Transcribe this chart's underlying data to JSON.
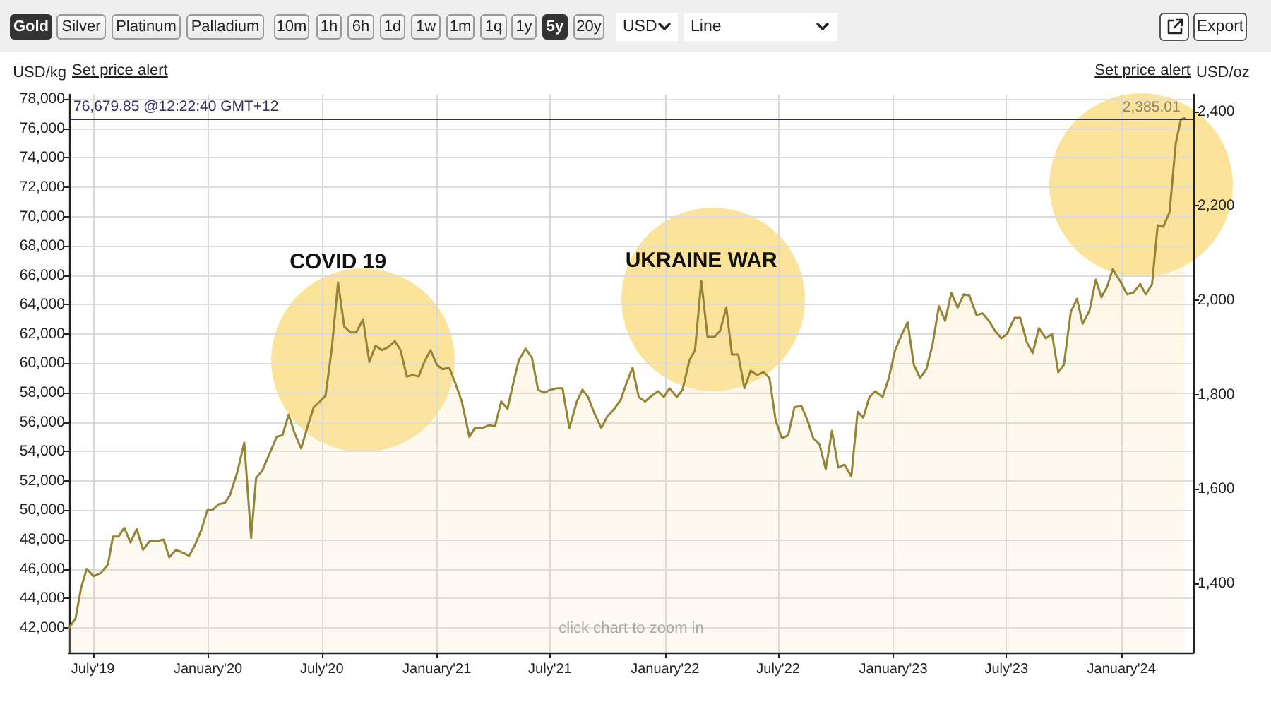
{
  "chart_data": {
    "type": "area",
    "ylabel": "USD/kg",
    "y2label": "USD/oz",
    "color": "#948435",
    "marker": "none",
    "grid": true,
    "xlim": [
      "2019-05-24",
      "2024-04-25"
    ],
    "xticks": [
      {
        "value": "2019-07-01",
        "label": "July'19"
      },
      {
        "value": "2020-01-01",
        "label": "January'20"
      },
      {
        "value": "2020-07-01",
        "label": "July'20"
      },
      {
        "value": "2021-01-01",
        "label": "January'21"
      },
      {
        "value": "2021-07-01",
        "label": "July'21"
      },
      {
        "value": "2022-01-01",
        "label": "January'22"
      },
      {
        "value": "2022-07-01",
        "label": "July'22"
      },
      {
        "value": "2023-01-01",
        "label": "January'23"
      },
      {
        "value": "2023-07-01",
        "label": "July'23"
      },
      {
        "value": "2024-01-01",
        "label": "January'24"
      }
    ],
    "ylim": [
      40300,
      78300
    ],
    "yticks": [
      {
        "value": 42000,
        "label": "42,000"
      },
      {
        "value": 44000,
        "label": "44,000"
      },
      {
        "value": 46000,
        "label": "46,000"
      },
      {
        "value": 48000,
        "label": "48,000"
      },
      {
        "value": 50000,
        "label": "50,000"
      },
      {
        "value": 52000,
        "label": "52,000"
      },
      {
        "value": 54000,
        "label": "54,000"
      },
      {
        "value": 56000,
        "label": "56,000"
      },
      {
        "value": 58000,
        "label": "58,000"
      },
      {
        "value": 60000,
        "label": "60,000"
      },
      {
        "value": 62000,
        "label": "62,000"
      },
      {
        "value": 64000,
        "label": "64,000"
      },
      {
        "value": 66000,
        "label": "66,000"
      },
      {
        "value": 68000,
        "label": "68,000"
      },
      {
        "value": 70000,
        "label": "70,000"
      },
      {
        "value": 72000,
        "label": "72,000"
      },
      {
        "value": 74000,
        "label": "74,000"
      },
      {
        "value": 76000,
        "label": "76,000"
      },
      {
        "value": 78000,
        "label": "78,000"
      }
    ],
    "y2lim": [
      1253.5,
      2435.4
    ],
    "y2ticks": [
      {
        "value": 1400,
        "label": "1,400"
      },
      {
        "value": 1600,
        "label": "1,600"
      },
      {
        "value": 1800,
        "label": "1,800"
      },
      {
        "value": 2000,
        "label": "2,000"
      },
      {
        "value": 2200,
        "label": "2,200"
      },
      {
        "value": 2400,
        "label": "2,400"
      }
    ],
    "ref_lines": [
      {
        "axis": "y",
        "value": 76679.85,
        "label": "76,679.85 @12:22:40 GMT+12",
        "color": "#2f3163"
      }
    ],
    "annotations": [
      {
        "text": "COVID 19",
        "x": "2020-07-27",
        "y": 65500
      },
      {
        "text": "UKRAINE WAR",
        "x": "2022-02-28",
        "y": 65600
      },
      {
        "text": "2,385.01",
        "x": "2024-04-11",
        "y": 76700
      },
      "click chart to zoom in",
      "Set price alert",
      "Set price alert",
      "Gold",
      "Silver",
      "Platinum",
      "Palladium",
      "10m",
      "1h",
      "6h",
      "1d",
      "1w",
      "1m",
      "1q",
      "1y",
      "5y",
      "20y",
      "USD",
      "Line",
      "Export"
    ],
    "x": [
      "2019-05-24",
      "2019-06-03",
      "2019-06-12",
      "2019-06-21",
      "2019-07-02",
      "2019-07-13",
      "2019-07-25",
      "2019-08-02",
      "2019-08-11",
      "2019-08-20",
      "2019-08-30",
      "2019-09-09",
      "2019-09-19",
      "2019-09-30",
      "2019-10-12",
      "2019-10-22",
      "2019-10-31",
      "2019-11-11",
      "2019-11-22",
      "2019-12-02",
      "2019-12-11",
      "2019-12-21",
      "2019-12-31",
      "2020-01-08",
      "2020-01-18",
      "2020-01-28",
      "2020-02-05",
      "2020-02-17",
      "2020-02-28",
      "2020-03-10",
      "2020-03-18",
      "2020-03-28",
      "2020-04-10",
      "2020-04-20",
      "2020-04-29",
      "2020-05-09",
      "2020-05-18",
      "2020-05-29",
      "2020-06-09",
      "2020-06-18",
      "2020-06-28",
      "2020-07-07",
      "2020-07-17",
      "2020-07-27",
      "2020-08-06",
      "2020-08-16",
      "2020-08-25",
      "2020-09-05",
      "2020-09-15",
      "2020-09-25",
      "2020-10-05",
      "2020-10-15",
      "2020-10-26",
      "2020-11-04",
      "2020-11-14",
      "2020-11-24",
      "2020-12-03",
      "2020-12-12",
      "2020-12-22",
      "2021-01-01",
      "2021-01-10",
      "2021-01-21",
      "2021-01-31",
      "2021-02-10",
      "2021-02-22",
      "2021-03-03",
      "2021-03-15",
      "2021-03-26",
      "2021-04-04",
      "2021-04-14",
      "2021-04-24",
      "2021-05-03",
      "2021-05-12",
      "2021-05-23",
      "2021-06-02",
      "2021-06-12",
      "2021-06-21",
      "2021-07-02",
      "2021-07-12",
      "2021-07-21",
      "2021-08-01",
      "2021-08-13",
      "2021-08-22",
      "2021-08-31",
      "2021-09-09",
      "2021-09-21",
      "2021-10-01",
      "2021-10-12",
      "2021-10-22",
      "2021-10-31",
      "2021-11-10",
      "2021-11-20",
      "2021-11-30",
      "2021-12-11",
      "2021-12-21",
      "2021-12-30",
      "2022-01-08",
      "2022-01-20",
      "2022-01-29",
      "2022-02-09",
      "2022-02-18",
      "2022-02-28",
      "2022-03-10",
      "2022-03-21",
      "2022-03-30",
      "2022-04-09",
      "2022-04-18",
      "2022-04-28",
      "2022-05-08",
      "2022-05-18",
      "2022-05-28",
      "2022-06-08",
      "2022-06-17",
      "2022-06-27",
      "2022-07-07",
      "2022-07-17",
      "2022-07-27",
      "2022-08-07",
      "2022-08-17",
      "2022-08-26",
      "2022-09-05",
      "2022-09-15",
      "2022-09-25",
      "2022-10-05",
      "2022-10-15",
      "2022-10-26",
      "2022-11-05",
      "2022-11-14",
      "2022-11-24",
      "2022-12-03",
      "2022-12-15",
      "2022-12-25",
      "2023-01-04",
      "2023-01-14",
      "2023-01-24",
      "2023-02-03",
      "2023-02-13",
      "2023-02-23",
      "2023-03-05",
      "2023-03-15",
      "2023-03-25",
      "2023-04-04",
      "2023-04-14",
      "2023-04-24",
      "2023-05-03",
      "2023-05-14",
      "2023-05-24",
      "2023-06-03",
      "2023-06-13",
      "2023-06-23",
      "2023-07-02",
      "2023-07-14",
      "2023-07-23",
      "2023-08-03",
      "2023-08-12",
      "2023-08-22",
      "2023-09-02",
      "2023-09-12",
      "2023-09-22",
      "2023-10-01",
      "2023-10-12",
      "2023-10-22",
      "2023-10-31",
      "2023-11-11",
      "2023-11-21",
      "2023-11-30",
      "2023-12-09",
      "2023-12-18",
      "2023-12-30",
      "2024-01-10",
      "2024-01-20",
      "2024-01-31",
      "2024-02-09",
      "2024-02-19",
      "2024-02-28",
      "2024-03-08",
      "2024-03-18",
      "2024-03-28",
      "2024-04-05",
      "2024-04-11"
    ],
    "values": [
      42000,
      42600,
      44700,
      46000,
      45500,
      45700,
      46300,
      48200,
      48200,
      48800,
      47800,
      48700,
      47300,
      47900,
      47900,
      48000,
      46800,
      47300,
      47100,
      46900,
      47600,
      48600,
      50000,
      50000,
      50400,
      50500,
      51000,
      52600,
      54600,
      48100,
      52200,
      52700,
      54000,
      55000,
      55100,
      56500,
      55300,
      54200,
      55800,
      57000,
      57400,
      57800,
      61000,
      65500,
      62500,
      62100,
      62100,
      63000,
      60100,
      61200,
      60900,
      61100,
      61500,
      60900,
      59100,
      59200,
      59100,
      60100,
      60900,
      59900,
      59600,
      59700,
      58600,
      57400,
      55000,
      55600,
      55600,
      55800,
      55700,
      57400,
      56900,
      58600,
      60200,
      61000,
      60400,
      58200,
      58000,
      58200,
      58300,
      58300,
      55600,
      57400,
      58200,
      57700,
      56700,
      55600,
      56400,
      56900,
      57500,
      58600,
      59700,
      57700,
      57400,
      57800,
      58100,
      57700,
      58300,
      57700,
      58200,
      60200,
      60900,
      65600,
      61800,
      61800,
      62200,
      63800,
      60600,
      60600,
      58300,
      59500,
      59200,
      59400,
      59000,
      56100,
      54900,
      55100,
      57000,
      57100,
      56100,
      54900,
      54500,
      52800,
      55400,
      52900,
      53100,
      52300,
      56700,
      56300,
      57700,
      58100,
      57700,
      59000,
      60900,
      61900,
      62800,
      59900,
      59000,
      59600,
      61300,
      63900,
      62900,
      64800,
      63800,
      64700,
      64600,
      63300,
      63400,
      62900,
      62200,
      61700,
      62000,
      63100,
      63100,
      61400,
      60700,
      62400,
      61700,
      62000,
      59400,
      59900,
      63500,
      64400,
      62700,
      63600,
      65700,
      64500,
      65200,
      66400,
      65600,
      64700,
      64800,
      65400,
      64700,
      65400,
      69400,
      69300,
      70300,
      75000,
      76600,
      76700
    ]
  }
}
